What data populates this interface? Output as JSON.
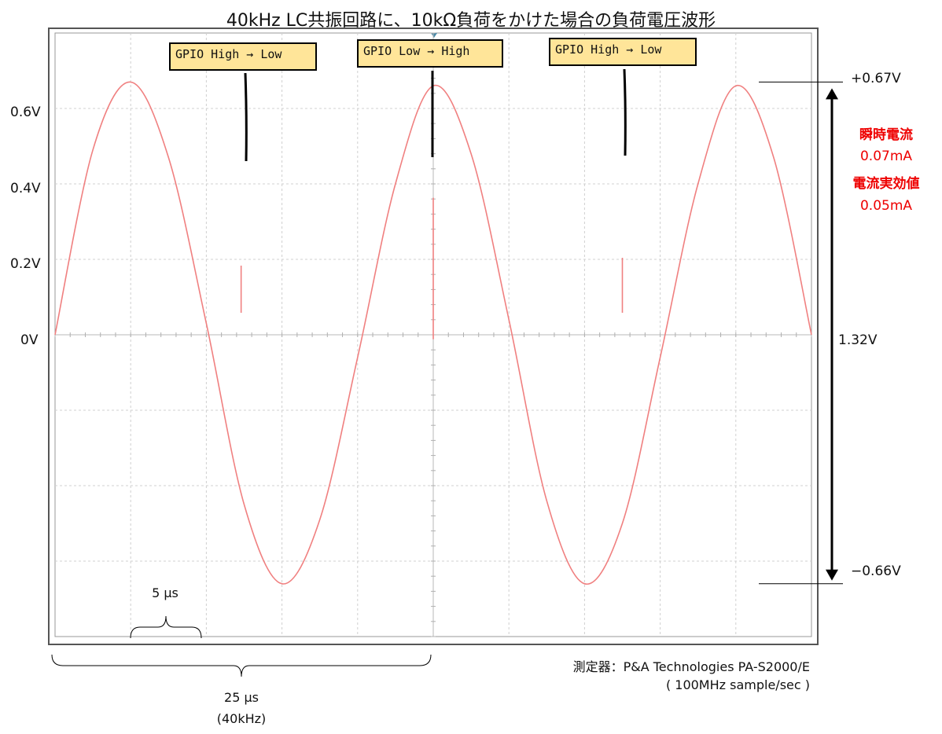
{
  "title": "40kHz LC共振回路に、10kΩ負荷をかけた場合の負荷電圧波形",
  "chart_data": {
    "type": "line",
    "y_tick_labels": [
      "0.6V",
      "0.4V",
      "0.2V",
      "0V"
    ],
    "y_ticks": [
      0.6,
      0.4,
      0.2,
      0
    ],
    "ylim": [
      -0.8,
      0.8
    ],
    "xlim_us": [
      0,
      50
    ],
    "grid": true,
    "series": [
      {
        "color": "#f08080",
        "x_us": [
          0,
          2.5,
          5,
          7.5,
          10,
          12.5,
          15,
          17.5,
          20,
          22.5,
          25,
          27.5,
          30,
          32.5,
          35,
          37.5,
          40,
          42.5,
          45,
          47.5,
          50
        ],
        "y": [
          0,
          0.49,
          0.67,
          0.47,
          0.03,
          -0.45,
          -0.66,
          -0.49,
          -0.06,
          0.4,
          0.66,
          0.48,
          0.04,
          -0.44,
          -0.66,
          -0.5,
          -0.06,
          0.4,
          0.66,
          0.47,
          0.0
        ]
      }
    ],
    "spikes_us": [
      12.3,
      25.0,
      37.5
    ],
    "annotations": {
      "gpio_labels": [
        "GPIO High → Low",
        "GPIO Low → High",
        "GPIO High → Low"
      ],
      "peak_label": "+0.67V",
      "trough_label": "−0.66V",
      "pp_label": "1.32V",
      "current_title": "瞬時電流",
      "current_value": "0.07mA",
      "rms_title": "電流実効値",
      "rms_value": "0.05mA",
      "span_small": "5 μs",
      "span_large": "25 μs",
      "span_large_freq": "(40kHz)",
      "instrument": "測定器：P&A Technologies PA-S2000/E",
      "sample_rate": "( 100MHz sample/sec )"
    }
  }
}
